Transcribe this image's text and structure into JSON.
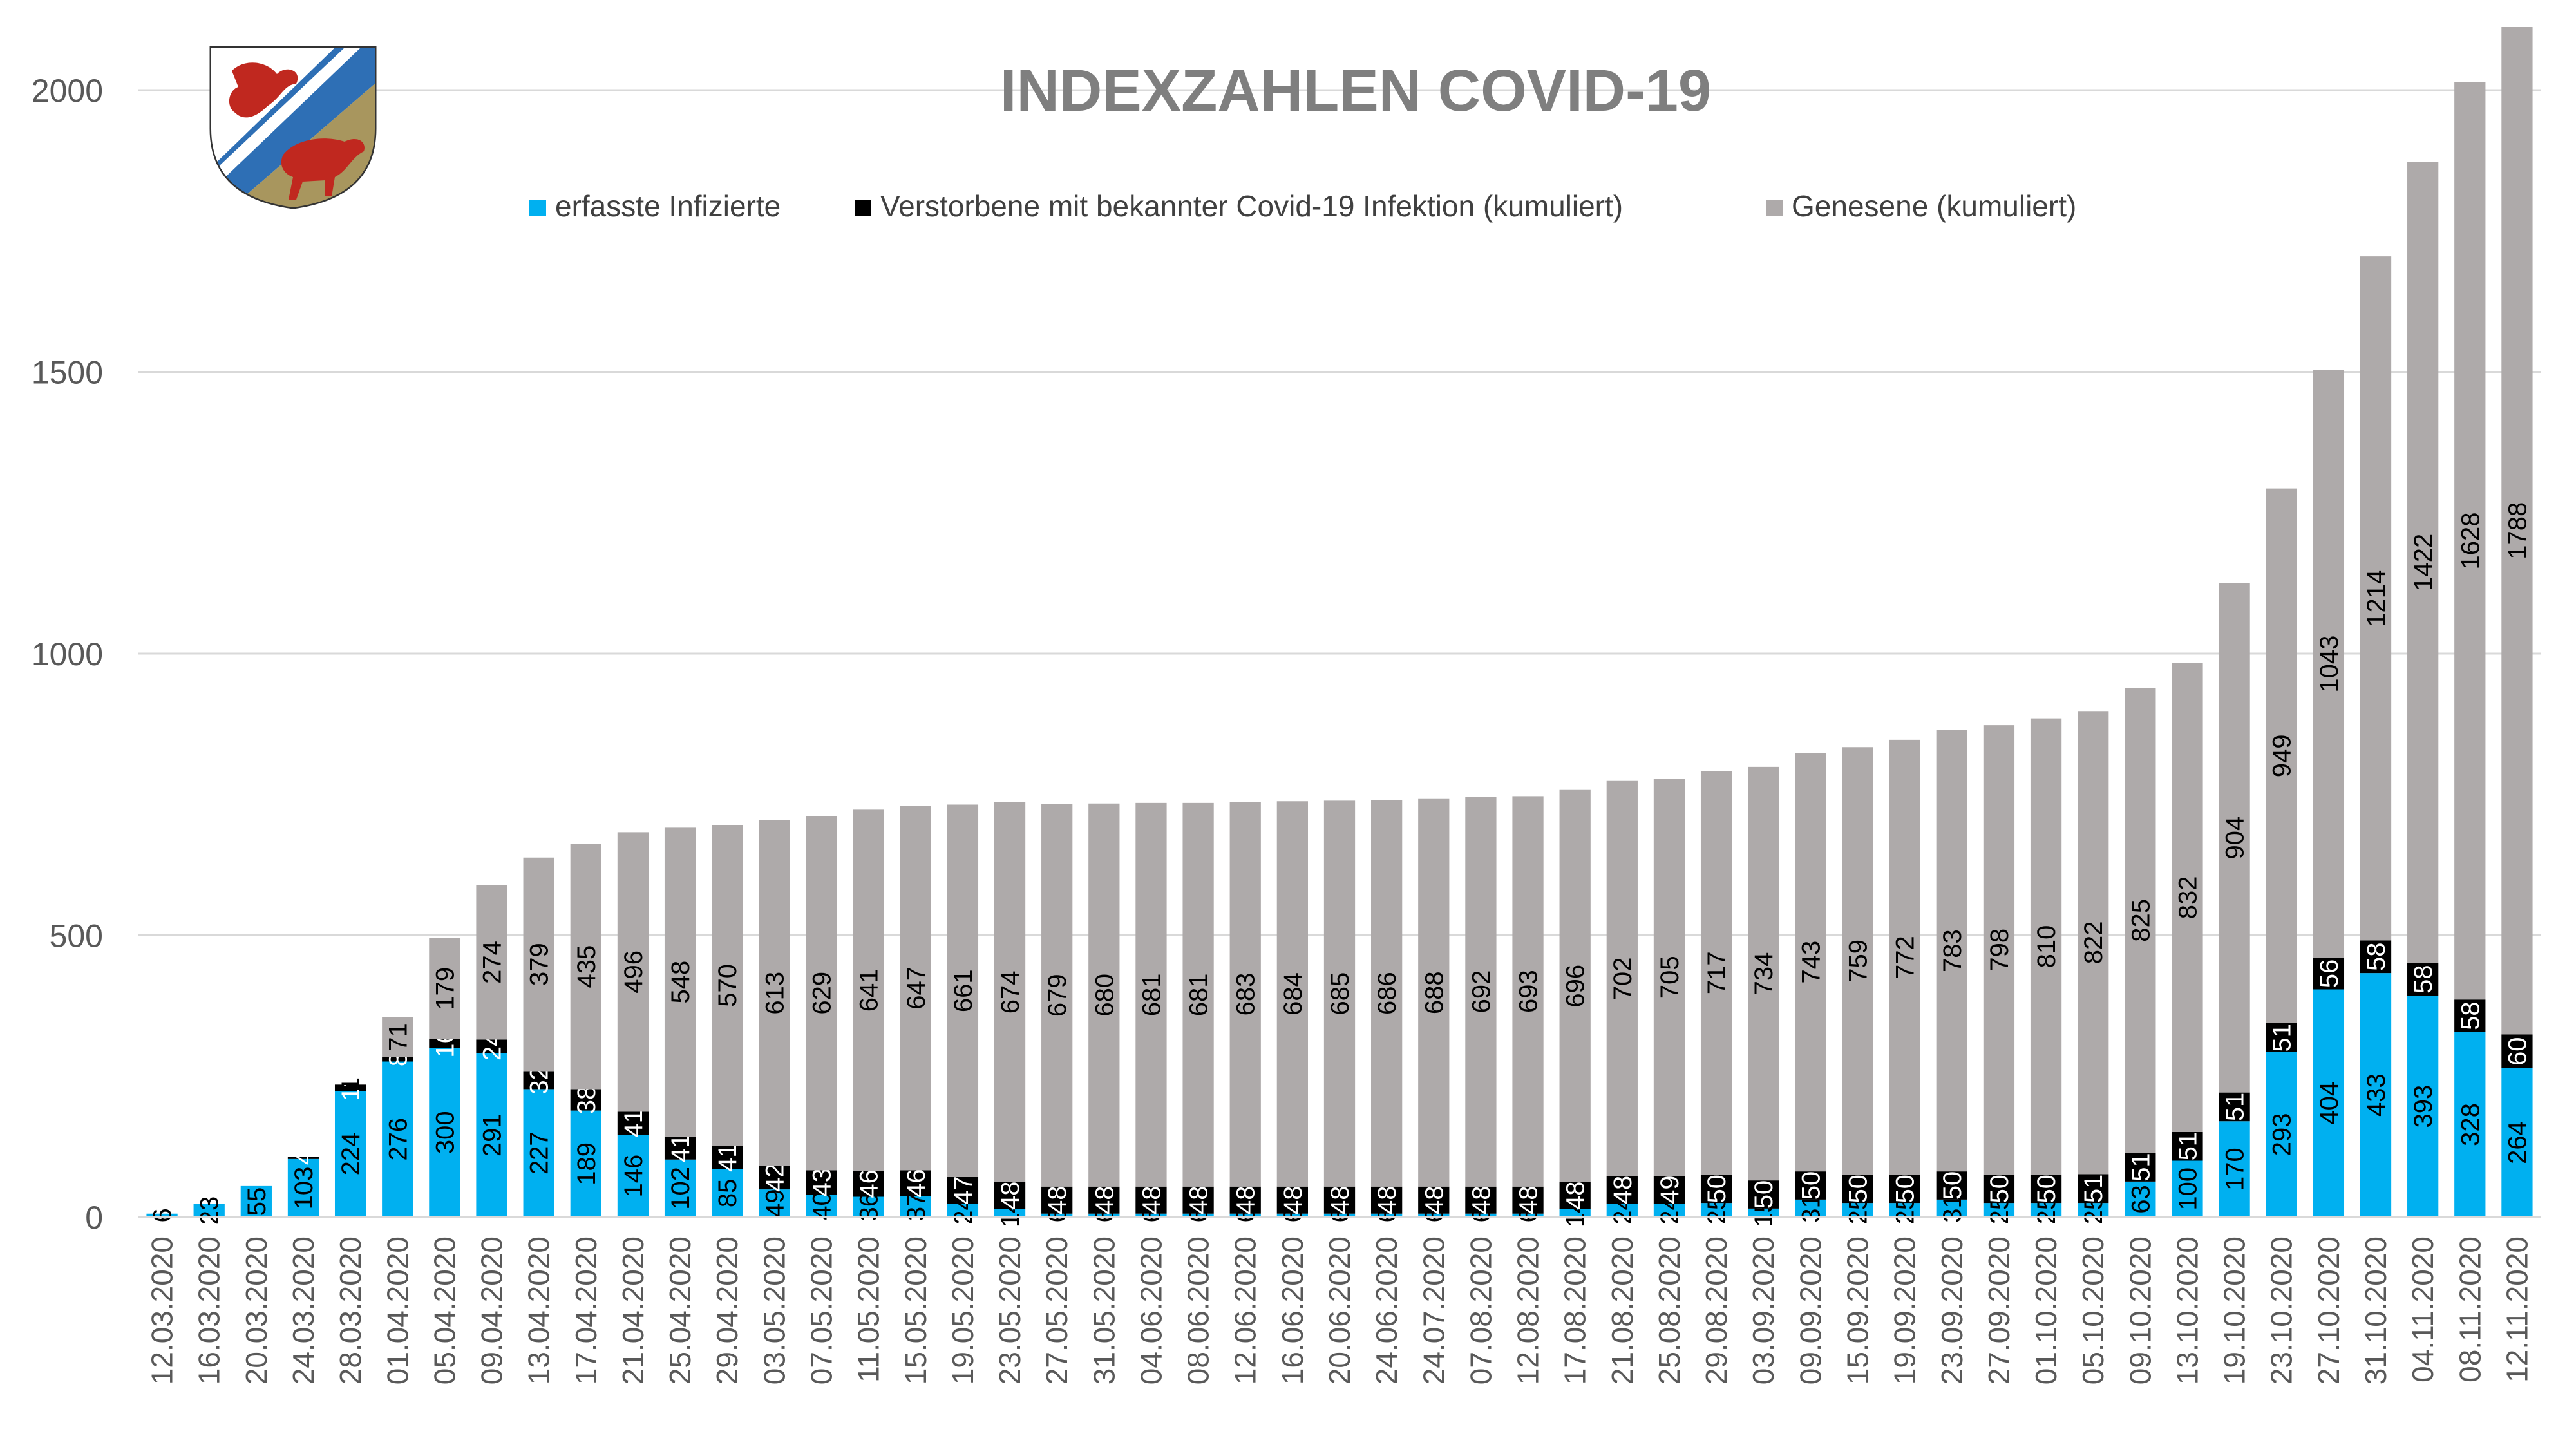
{
  "chart_data": {
    "type": "bar",
    "stacked": true,
    "title": "INDEXZAHLEN COVID-19",
    "xlabel": "",
    "ylabel": "",
    "ylim": [
      0,
      2100
    ],
    "yticks": [
      0,
      500,
      1000,
      1500,
      2000
    ],
    "grid": true,
    "legend_position": "top",
    "categories": [
      "12.03.2020",
      "16.03.2020",
      "20.03.2020",
      "24.03.2020",
      "28.03.2020",
      "01.04.2020",
      "05.04.2020",
      "09.04.2020",
      "13.04.2020",
      "17.04.2020",
      "21.04.2020",
      "25.04.2020",
      "29.04.2020",
      "03.05.2020",
      "07.05.2020",
      "11.05.2020",
      "15.05.2020",
      "19.05.2020",
      "23.05.2020",
      "27.05.2020",
      "31.05.2020",
      "04.06.2020",
      "08.06.2020",
      "12.06.2020",
      "16.06.2020",
      "20.06.2020",
      "24.06.2020",
      "24.07.2020",
      "07.08.2020",
      "12.08.2020",
      "17.08.2020",
      "21.08.2020",
      "25.08.2020",
      "29.08.2020",
      "03.09.2020",
      "09.09.2020",
      "15.09.2020",
      "19.09.2020",
      "23.09.2020",
      "27.09.2020",
      "01.10.2020",
      "05.10.2020",
      "09.10.2020",
      "13.10.2020",
      "19.10.2020",
      "23.10.2020",
      "27.10.2020",
      "31.10.2020",
      "04.11.2020",
      "08.11.2020",
      "12.11.2020"
    ],
    "series": [
      {
        "name": "erfasste Infizierte",
        "color": "#00b0f0",
        "values": [
          6,
          23,
          55,
          103,
          224,
          276,
          300,
          291,
          227,
          189,
          146,
          102,
          85,
          49,
          40,
          36,
          37,
          24,
          14,
          6,
          6,
          6,
          6,
          6,
          6,
          6,
          6,
          6,
          6,
          6,
          14,
          24,
          24,
          25,
          15,
          31,
          25,
          25,
          31,
          25,
          25,
          25,
          63,
          100,
          170,
          293,
          404,
          433,
          393,
          328,
          264
        ]
      },
      {
        "name": "Verstorbene mit bekannter Covid-19 Infektion (kumuliert)",
        "color": "#000000",
        "values": [
          0,
          0,
          0,
          4,
          11,
          8,
          16,
          24,
          32,
          38,
          41,
          41,
          41,
          42,
          43,
          46,
          46,
          47,
          48,
          48,
          48,
          48,
          48,
          48,
          48,
          48,
          48,
          48,
          48,
          48,
          48,
          48,
          49,
          50,
          50,
          50,
          50,
          50,
          50,
          50,
          50,
          51,
          51,
          51,
          51,
          51,
          56,
          58,
          58,
          58,
          60
        ]
      },
      {
        "name": "Genesene (kumuliert)",
        "color": "#aeaaaa",
        "values": [
          0,
          0,
          0,
          0,
          1,
          71,
          179,
          274,
          379,
          435,
          496,
          548,
          570,
          613,
          629,
          641,
          647,
          661,
          674,
          679,
          680,
          681,
          681,
          683,
          684,
          685,
          686,
          688,
          692,
          693,
          696,
          702,
          705,
          717,
          734,
          743,
          759,
          772,
          783,
          798,
          810,
          822,
          825,
          832,
          904,
          949,
          1043,
          1214,
          1422,
          1628,
          1788
        ]
      }
    ],
    "segment_labels": {
      "infected": [
        "6",
        "23",
        "55",
        "103",
        "224",
        "276",
        "300",
        "291",
        "227",
        "189",
        "146",
        "102",
        "85",
        "49",
        "40",
        "36",
        "37",
        "24",
        "14",
        "6",
        "6",
        "6",
        "6",
        "6",
        "6",
        "6",
        "6",
        "6",
        "6",
        "6",
        "14",
        "24",
        "24",
        "25",
        "15",
        "31",
        "25",
        "25",
        "31",
        "25",
        "25",
        "25",
        "63",
        "100",
        "170",
        "293",
        "404",
        "433",
        "393",
        "328",
        "264"
      ],
      "deceased": [
        "",
        "",
        "",
        "4",
        "11",
        "8",
        "16",
        "24",
        "32",
        "38",
        "41",
        "41",
        "41",
        "42",
        "43",
        "46",
        "46",
        "47",
        "48",
        "48",
        "48",
        "48",
        "48",
        "48",
        "48",
        "48",
        "48",
        "48",
        "48",
        "48",
        "48",
        "48",
        "49",
        "50",
        "50",
        "50",
        "50",
        "50",
        "50",
        "50",
        "50",
        "51",
        "51",
        "51",
        "51",
        "51",
        "56",
        "58",
        "58",
        "58",
        "60"
      ],
      "recovered": [
        "",
        "",
        "",
        "",
        "1",
        "71",
        "179",
        "274",
        "379",
        "435",
        "496",
        "548",
        "570",
        "613",
        "629",
        "641",
        "647",
        "661",
        "674",
        "679",
        "680",
        "681",
        "681",
        "683",
        "684",
        "685",
        "686",
        "688",
        "692",
        "693",
        "696",
        "702",
        "705",
        "717",
        "734",
        "743",
        "759",
        "772",
        "783",
        "798",
        "810",
        "822",
        "825",
        "832",
        "904",
        "949",
        "1043",
        "1214",
        "1422",
        "1628",
        "1788"
      ]
    }
  }
}
